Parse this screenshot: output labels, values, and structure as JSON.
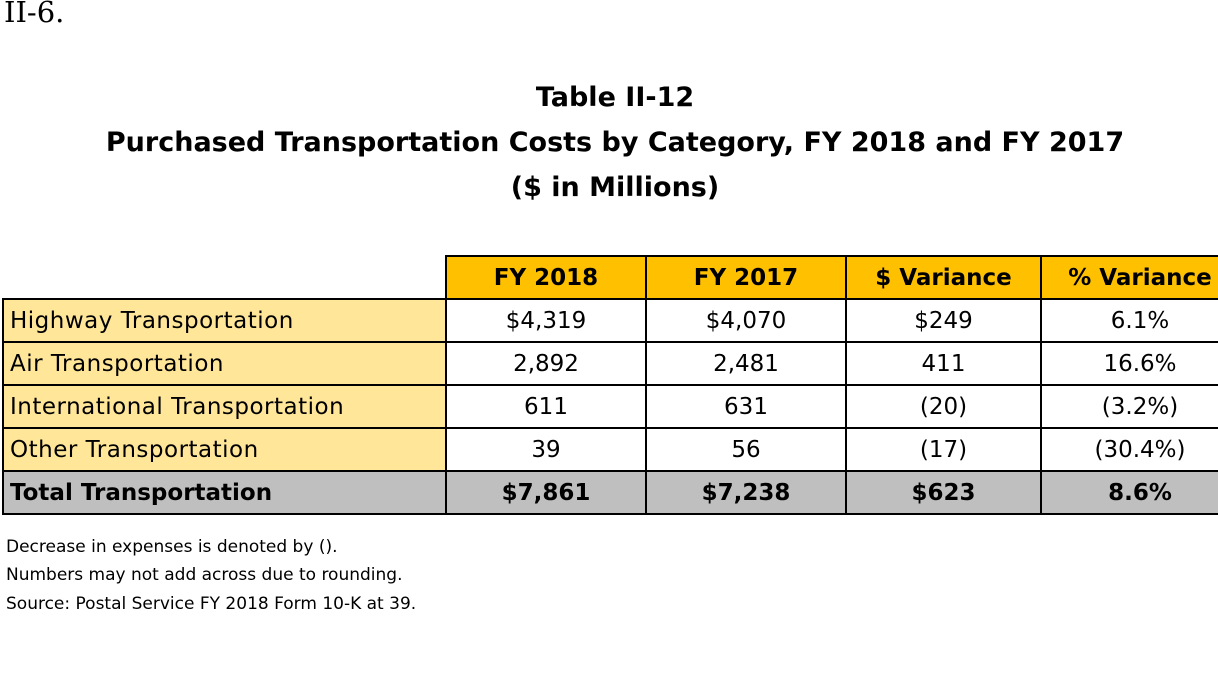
{
  "reference_top": "II-6.",
  "title": {
    "line1": "Table II-12",
    "line2": "Purchased Transportation Costs by Category, FY 2018 and FY 2017",
    "line3": "($ in Millions)"
  },
  "table": {
    "headers": [
      "FY 2018",
      "FY 2017",
      "$ Variance",
      "% Variance"
    ],
    "rows": [
      {
        "label": "Highway Transportation",
        "fy2018": "$4,319",
        "fy2017": "$4,070",
        "dollar_variance": "$249",
        "pct_variance": "6.1%"
      },
      {
        "label": "Air Transportation",
        "fy2018": "2,892",
        "fy2017": "2,481",
        "dollar_variance": "411",
        "pct_variance": "16.6%"
      },
      {
        "label": "International Transportation",
        "fy2018": "611",
        "fy2017": "631",
        "dollar_variance": "(20)",
        "pct_variance": "(3.2%)"
      },
      {
        "label": "Other Transportation",
        "fy2018": "39",
        "fy2017": "56",
        "dollar_variance": "(17)",
        "pct_variance": "(30.4%)"
      }
    ],
    "total": {
      "label": "Total Transportation",
      "fy2018": "$7,861",
      "fy2017": "$7,238",
      "dollar_variance": "$623",
      "pct_variance": "8.6%"
    }
  },
  "notes": [
    "Decrease in expenses is denoted by ().",
    "Numbers may not add across due to rounding.",
    "Source: Postal Service FY 2018 Form 10-K at 39."
  ],
  "colors": {
    "header_fill": "#ffc000",
    "label_fill": "#ffe699",
    "total_fill": "#bfbfbf"
  }
}
